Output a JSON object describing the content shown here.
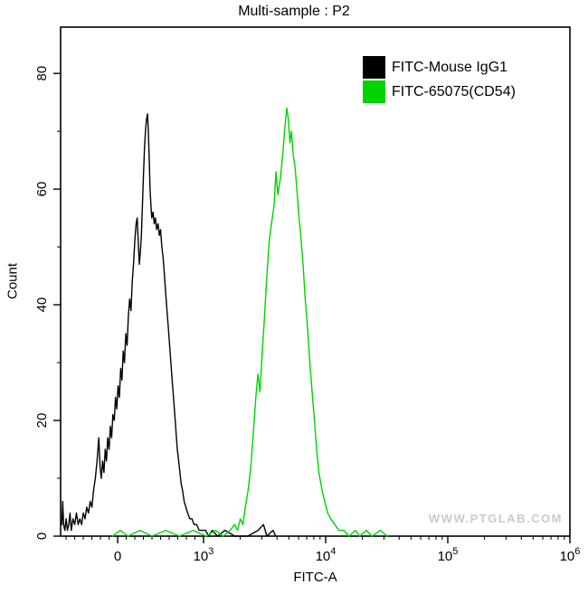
{
  "chart": {
    "title": "Multi-sample : P2",
    "x_label": "FITC-A",
    "y_label": "Count",
    "watermark": "WWW.PTGLAB.COM",
    "legend": [
      {
        "label": "FITC-Mouse IgG1",
        "color": "#000000"
      },
      {
        "label": "FITC-65075(CD54)",
        "color": "#00d300"
      }
    ]
  },
  "chart_data": {
    "type": "line",
    "subtype": "flow-cytometry-histogram",
    "title": "Multi-sample : P2",
    "xlabel": "FITC-A",
    "ylabel": "Count",
    "x_scale": "biexponential: linear from -660 to 1000, logarithmic from 10^3 to 10^6",
    "x_axis": {
      "zero_pos": 0.112,
      "thousand_pos": 0.2806,
      "log_decades": 3
    },
    "x_ticks": [
      {
        "value": 0,
        "base": "0",
        "exp": ""
      },
      {
        "value": 1000,
        "base": "10",
        "exp": "3"
      },
      {
        "value": 10000,
        "base": "10",
        "exp": "4"
      },
      {
        "value": 100000,
        "base": "10",
        "exp": "5"
      },
      {
        "value": 1000000,
        "base": "10",
        "exp": "6"
      }
    ],
    "ylim": [
      0,
      88
    ],
    "y_ticks": [
      0,
      20,
      40,
      60,
      80
    ],
    "grid": false,
    "legend_position": "top-right inside plot",
    "series": [
      {
        "name": "FITC-Mouse IgG1",
        "color": "#000000",
        "peak": {
          "x": 350,
          "count": 73
        },
        "points": [
          [
            -650,
            2
          ],
          [
            -640,
            6
          ],
          [
            -630,
            2
          ],
          [
            -615,
            1
          ],
          [
            -600,
            3
          ],
          [
            -585,
            1
          ],
          [
            -570,
            2
          ],
          [
            -555,
            4
          ],
          [
            -540,
            1
          ],
          [
            -520,
            3
          ],
          [
            -500,
            2
          ],
          [
            -480,
            4
          ],
          [
            -460,
            2
          ],
          [
            -440,
            3
          ],
          [
            -420,
            2
          ],
          [
            -400,
            4
          ],
          [
            -380,
            3
          ],
          [
            -360,
            5
          ],
          [
            -340,
            4
          ],
          [
            -320,
            6
          ],
          [
            -300,
            5
          ],
          [
            -280,
            8
          ],
          [
            -260,
            10
          ],
          [
            -240,
            13
          ],
          [
            -220,
            17
          ],
          [
            -205,
            12
          ],
          [
            -190,
            10
          ],
          [
            -175,
            13
          ],
          [
            -160,
            11
          ],
          [
            -145,
            15
          ],
          [
            -130,
            13
          ],
          [
            -115,
            17
          ],
          [
            -100,
            15
          ],
          [
            -85,
            19
          ],
          [
            -70,
            17
          ],
          [
            -55,
            21
          ],
          [
            -40,
            20
          ],
          [
            -25,
            24
          ],
          [
            -10,
            22
          ],
          [
            5,
            26
          ],
          [
            20,
            24
          ],
          [
            35,
            29
          ],
          [
            50,
            27
          ],
          [
            65,
            32
          ],
          [
            80,
            30
          ],
          [
            95,
            35
          ],
          [
            110,
            33
          ],
          [
            125,
            38
          ],
          [
            140,
            41
          ],
          [
            155,
            39
          ],
          [
            170,
            44
          ],
          [
            185,
            47
          ],
          [
            200,
            51
          ],
          [
            215,
            54
          ],
          [
            228,
            55
          ],
          [
            240,
            51
          ],
          [
            252,
            47
          ],
          [
            264,
            49
          ],
          [
            276,
            52
          ],
          [
            288,
            57
          ],
          [
            300,
            62
          ],
          [
            312,
            67
          ],
          [
            324,
            70
          ],
          [
            336,
            72
          ],
          [
            348,
            73
          ],
          [
            358,
            70
          ],
          [
            368,
            65
          ],
          [
            378,
            60
          ],
          [
            388,
            57
          ],
          [
            398,
            55
          ],
          [
            412,
            56
          ],
          [
            426,
            54
          ],
          [
            440,
            55
          ],
          [
            455,
            53
          ],
          [
            470,
            54
          ],
          [
            485,
            52
          ],
          [
            500,
            53
          ],
          [
            515,
            50
          ],
          [
            530,
            48
          ],
          [
            545,
            45
          ],
          [
            560,
            42
          ],
          [
            575,
            39
          ],
          [
            590,
            36
          ],
          [
            605,
            33
          ],
          [
            620,
            30
          ],
          [
            635,
            27
          ],
          [
            650,
            24
          ],
          [
            665,
            21
          ],
          [
            680,
            18
          ],
          [
            695,
            15
          ],
          [
            710,
            13
          ],
          [
            725,
            11
          ],
          [
            740,
            9
          ],
          [
            755,
            8
          ],
          [
            775,
            6
          ],
          [
            795,
            5
          ],
          [
            815,
            4
          ],
          [
            840,
            3
          ],
          [
            865,
            3
          ],
          [
            890,
            2
          ],
          [
            920,
            2
          ],
          [
            950,
            1
          ],
          [
            990,
            1
          ],
          [
            1040,
            1
          ],
          [
            1100,
            0
          ],
          [
            1180,
            1
          ],
          [
            1300,
            0
          ],
          [
            1500,
            1
          ],
          [
            1800,
            0
          ],
          [
            2300,
            0
          ],
          [
            2800,
            1
          ],
          [
            3100,
            2
          ],
          [
            3300,
            0
          ],
          [
            3700,
            1
          ],
          [
            3900,
            0
          ]
        ]
      },
      {
        "name": "FITC-65075(CD54)",
        "color": "#00d300",
        "peak": {
          "x": 4800,
          "count": 74
        },
        "points": [
          [
            -60,
            0
          ],
          [
            30,
            1
          ],
          [
            120,
            0
          ],
          [
            260,
            1
          ],
          [
            400,
            0
          ],
          [
            560,
            1
          ],
          [
            720,
            0
          ],
          [
            880,
            1
          ],
          [
            1050,
            0
          ],
          [
            1250,
            1
          ],
          [
            1450,
            0
          ],
          [
            1650,
            1
          ],
          [
            1800,
            2
          ],
          [
            1900,
            1
          ],
          [
            2000,
            3
          ],
          [
            2100,
            2
          ],
          [
            2200,
            5
          ],
          [
            2320,
            8
          ],
          [
            2440,
            12
          ],
          [
            2560,
            18
          ],
          [
            2680,
            24
          ],
          [
            2790,
            28
          ],
          [
            2900,
            25
          ],
          [
            3030,
            32
          ],
          [
            3160,
            38
          ],
          [
            3300,
            45
          ],
          [
            3450,
            51
          ],
          [
            3600,
            54
          ],
          [
            3780,
            57
          ],
          [
            3920,
            63
          ],
          [
            4060,
            59
          ],
          [
            4270,
            62
          ],
          [
            4450,
            66
          ],
          [
            4650,
            71
          ],
          [
            4800,
            74
          ],
          [
            4950,
            72
          ],
          [
            5100,
            68
          ],
          [
            5250,
            70
          ],
          [
            5420,
            66
          ],
          [
            5600,
            64
          ],
          [
            5820,
            60
          ],
          [
            6000,
            56
          ],
          [
            6250,
            52
          ],
          [
            6530,
            47
          ],
          [
            6800,
            41
          ],
          [
            7110,
            36
          ],
          [
            7420,
            30
          ],
          [
            7750,
            25
          ],
          [
            8100,
            20
          ],
          [
            8440,
            15
          ],
          [
            8800,
            11
          ],
          [
            9350,
            8
          ],
          [
            9800,
            6
          ],
          [
            10400,
            4
          ],
          [
            11000,
            3
          ],
          [
            11900,
            2
          ],
          [
            12800,
            1
          ],
          [
            14100,
            1
          ],
          [
            15500,
            0
          ],
          [
            17500,
            1
          ],
          [
            19000,
            0
          ],
          [
            21500,
            1
          ],
          [
            24000,
            0
          ],
          [
            28000,
            1
          ],
          [
            32000,
            0
          ]
        ]
      }
    ]
  }
}
